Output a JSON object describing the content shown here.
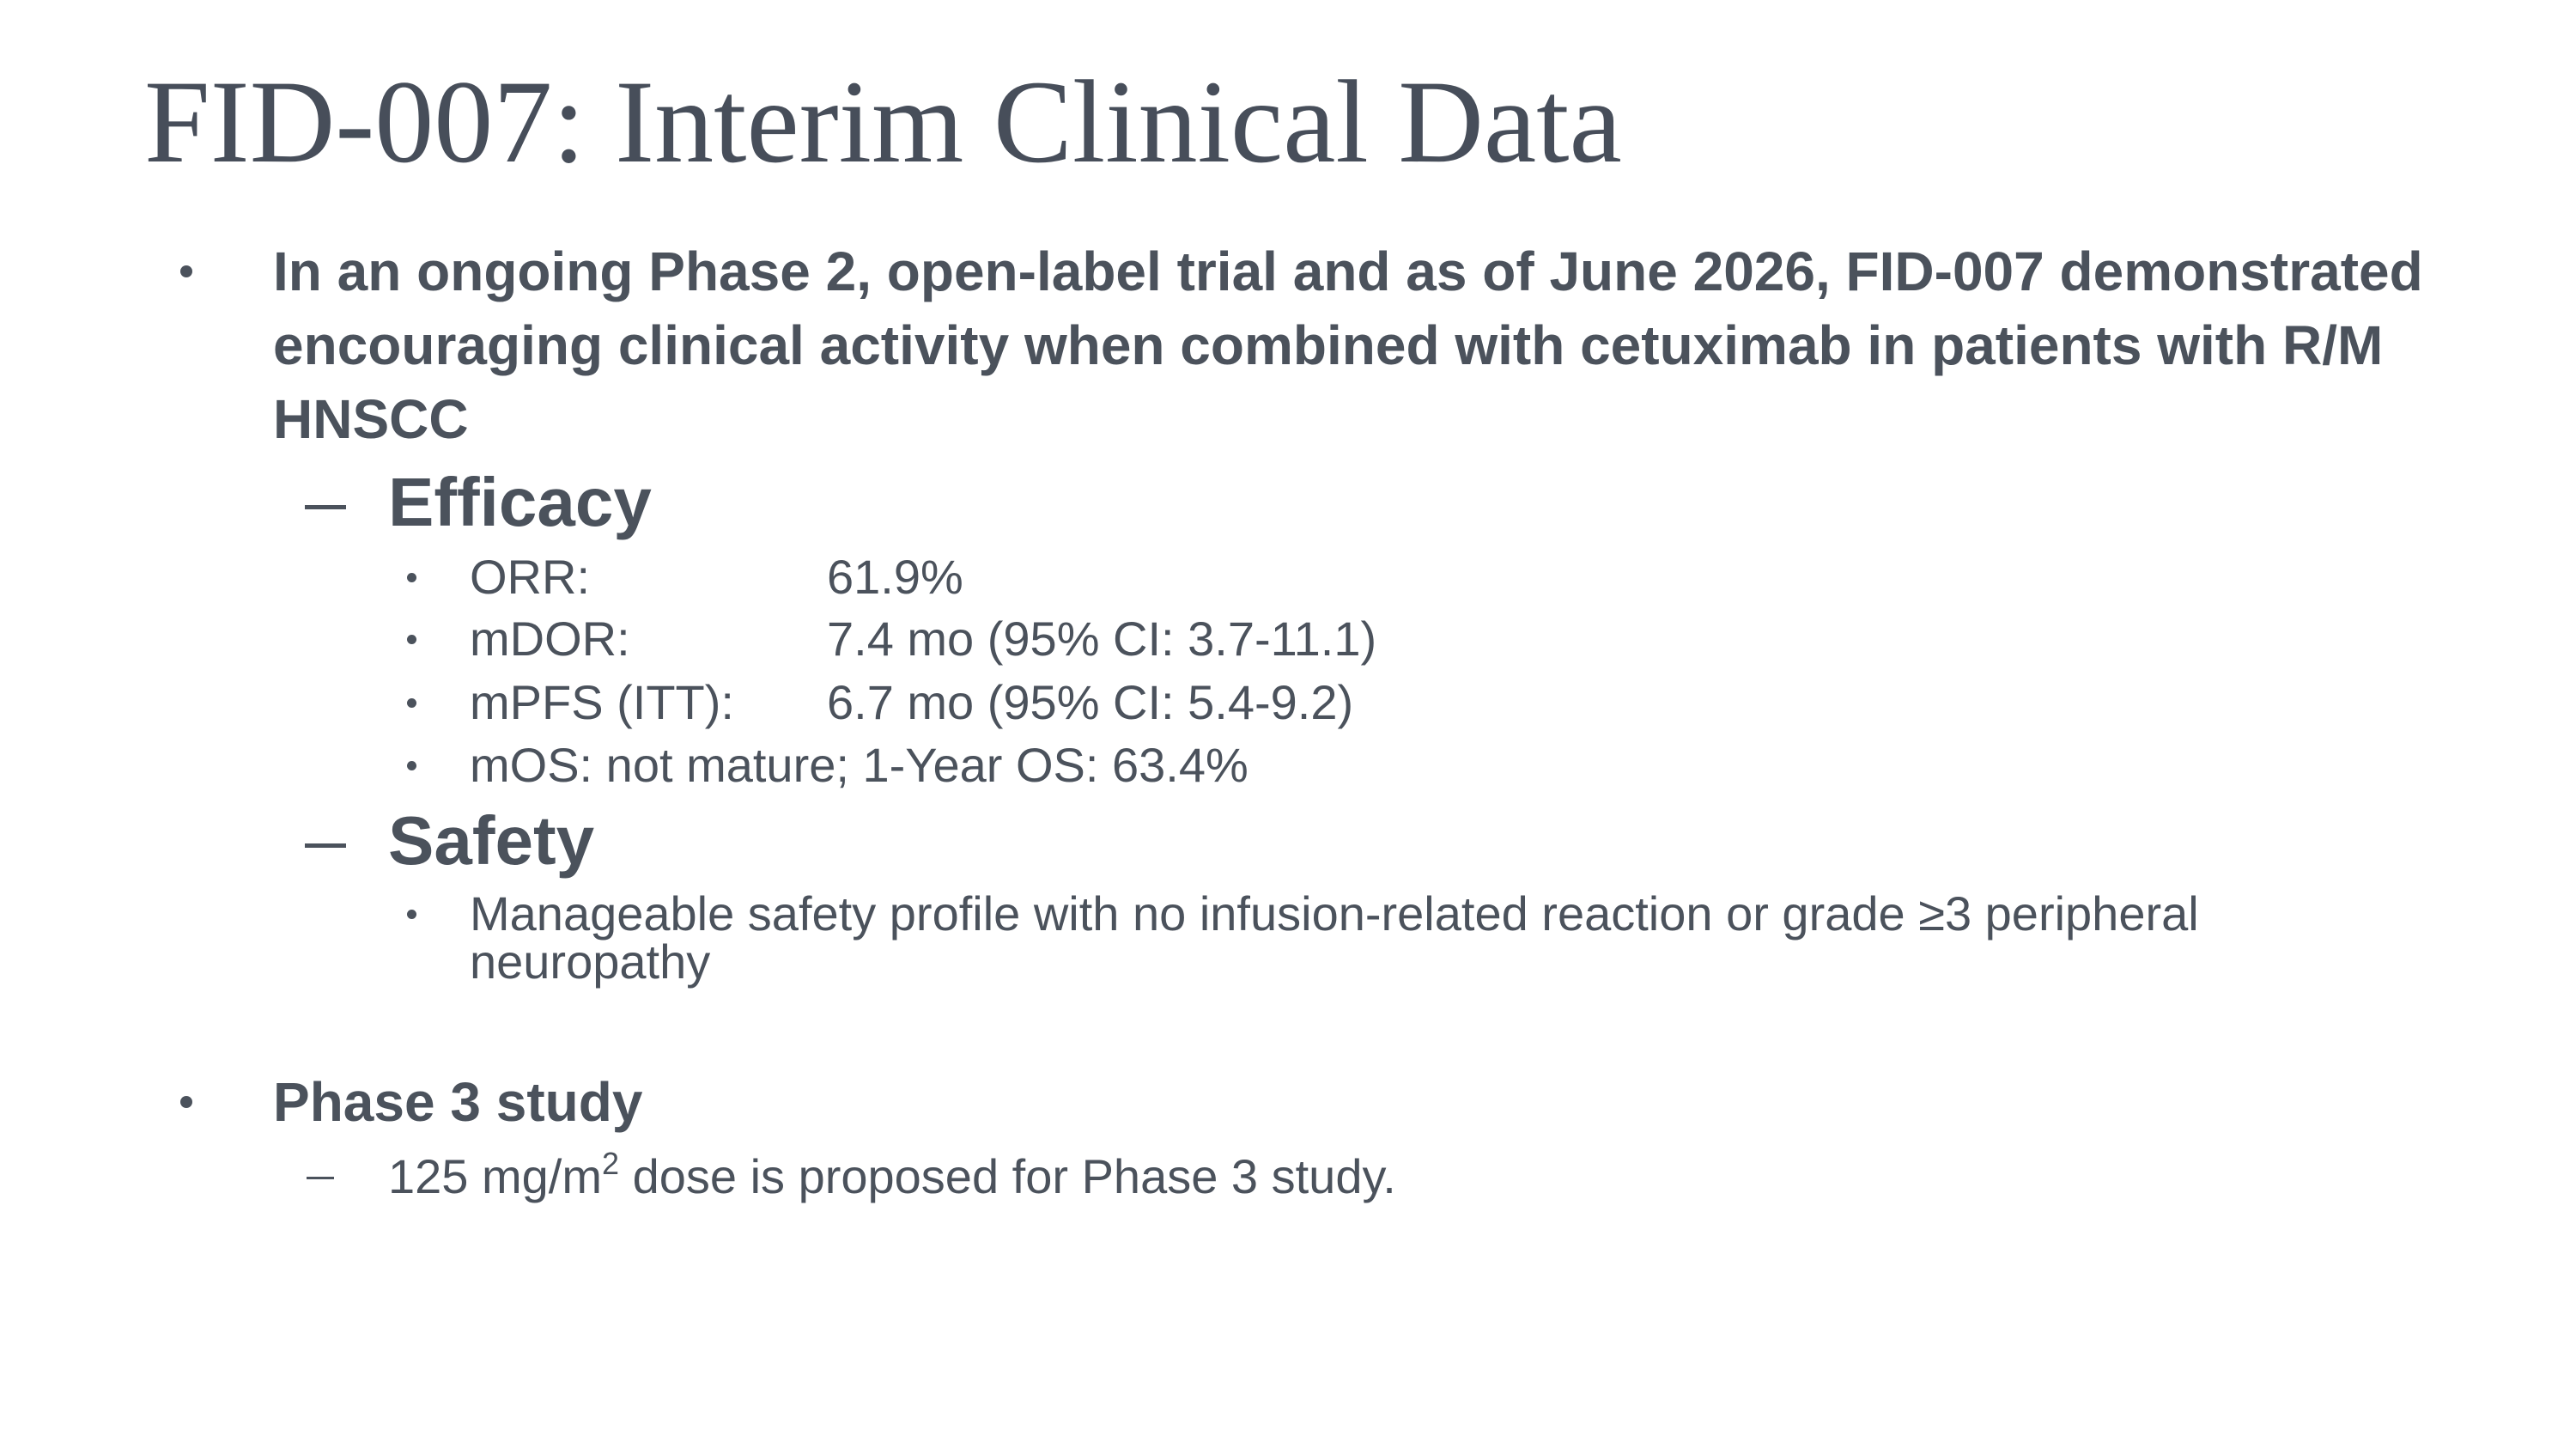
{
  "title": "FID-007: Interim Clinical Data",
  "bullets": [
    {
      "text": "In an ongoing Phase 2, open-label trial and as of June 2026, FID-007 demonstrated encouraging clinical activity when combined with cetuximab in patients with R/M HNSCC",
      "sections": [
        {
          "heading": "Efficacy",
          "items": [
            {
              "label": "ORR:",
              "value": "61.9%"
            },
            {
              "label": "mDOR:",
              "value": "7.4 mo (95% CI: 3.7-11.1)"
            },
            {
              "label": "mPFS (ITT):",
              "value": "6.7 mo (95% CI: 5.4-9.2)"
            },
            {
              "text": "mOS: not mature; 1-Year OS: 63.4%"
            }
          ]
        },
        {
          "heading": "Safety",
          "items": [
            {
              "text": "Manageable safety profile with no infusion-related reaction or grade ≥3 peripheral neuropathy"
            }
          ]
        }
      ]
    },
    {
      "text": "Phase 3 study",
      "sub": [
        {
          "parts": [
            "125 mg/m",
            "2",
            " dose is proposed for Phase 3 study."
          ]
        }
      ]
    }
  ]
}
